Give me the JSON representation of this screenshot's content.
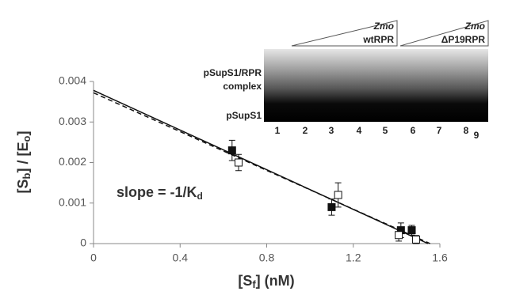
{
  "chart_data": {
    "type": "scatter",
    "xlabel": [
      "[S",
      "f",
      "] (nM)"
    ],
    "ylabel": [
      "[S",
      "b",
      "] / [E",
      "o",
      "]"
    ],
    "annotation": [
      "slope = -1/K",
      "d"
    ],
    "xlim": [
      0,
      1.6
    ],
    "xticks": [
      0,
      0.4,
      0.8,
      1.2,
      1.6
    ],
    "ylim": [
      0,
      0.004
    ],
    "yticks": [
      0,
      0.001,
      0.002,
      0.003,
      0.004
    ],
    "series": [
      {
        "marker": "filled",
        "color": "#111",
        "x": [
          0.64,
          1.1,
          1.42,
          1.47
        ],
        "values": [
          0.0023,
          0.0009,
          0.00033,
          0.00033
        ],
        "errors": [
          0.00025,
          0.0002,
          0.00018,
          0.00012
        ]
      },
      {
        "marker": "open",
        "color": "#111",
        "x": [
          0.67,
          1.13,
          1.41,
          1.49
        ],
        "values": [
          0.002,
          0.0012,
          0.00021,
          0.0001
        ],
        "errors": [
          0.0002,
          0.0003,
          0.00015,
          0.0001
        ]
      }
    ],
    "fits": [
      {
        "style": "solid",
        "x": [
          0,
          1.545
        ],
        "values": [
          0.00378,
          0
        ]
      },
      {
        "style": "dashed",
        "x": [
          0,
          1.555
        ],
        "values": [
          0.00372,
          0
        ]
      }
    ],
    "inset": {
      "groups": [
        {
          "organism": "Zmo",
          "label": "wtRPR"
        },
        {
          "organism": "Zmo",
          "label": "ΔP19RPR"
        }
      ],
      "bands": [
        "pSupS1/RPR",
        "complex",
        "pSupS1"
      ],
      "lanes": [
        "1",
        "2",
        "3",
        "4",
        "5",
        "6",
        "7",
        "8",
        "9"
      ]
    }
  }
}
